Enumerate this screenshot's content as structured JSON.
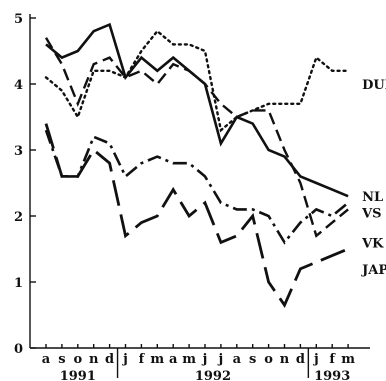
{
  "chart_data": {
    "type": "line",
    "title": "",
    "xlabel": "",
    "ylabel": "",
    "ylim": [
      0,
      5
    ],
    "yticks": [
      0,
      1,
      2,
      3,
      4,
      5
    ],
    "grid": false,
    "legend": "inline-right",
    "categories": [
      "a",
      "s",
      "o",
      "n",
      "d",
      "j",
      "f",
      "m",
      "a",
      "m",
      "j",
      "j",
      "a",
      "s",
      "o",
      "n",
      "d",
      "j",
      "f",
      "m"
    ],
    "year_labels": [
      {
        "label": "1991",
        "from": 0,
        "to": 4
      },
      {
        "label": "1992",
        "from": 5,
        "to": 16
      },
      {
        "label": "1993",
        "from": 17,
        "to": 19
      }
    ],
    "year_boundaries": [
      4.5,
      16.5
    ],
    "series": [
      {
        "name": "DUI",
        "style": "dotted",
        "values": [
          4.1,
          3.9,
          3.5,
          4.2,
          4.2,
          4.1,
          4.5,
          4.8,
          4.6,
          4.6,
          4.5,
          3.3,
          3.5,
          3.6,
          3.7,
          3.7,
          3.7,
          4.4,
          4.2,
          4.2
        ]
      },
      {
        "name": "NL",
        "style": "solid",
        "values": [
          4.6,
          4.4,
          4.5,
          4.8,
          4.9,
          4.1,
          4.4,
          4.2,
          4.4,
          4.2,
          4.0,
          3.1,
          3.5,
          3.4,
          3.0,
          2.9,
          2.6,
          2.5,
          2.4,
          2.3
        ]
      },
      {
        "name": "VS",
        "style": "dashed",
        "values": [
          4.7,
          4.3,
          3.7,
          4.3,
          4.4,
          4.1,
          4.2,
          4.0,
          4.3,
          4.2,
          4.0,
          3.7,
          3.5,
          3.6,
          3.6,
          3.0,
          2.5,
          1.7,
          1.9,
          2.1
        ]
      },
      {
        "name": "VK",
        "style": "dash-dot",
        "values": [
          3.3,
          2.6,
          2.6,
          3.2,
          3.1,
          2.6,
          2.8,
          2.9,
          2.8,
          2.8,
          2.6,
          2.2,
          2.1,
          2.1,
          2.0,
          1.6,
          1.9,
          2.1,
          2.0,
          2.2
        ]
      },
      {
        "name": "JAP",
        "style": "long-dash",
        "values": [
          3.4,
          2.6,
          2.6,
          3.0,
          2.8,
          1.7,
          1.9,
          2.0,
          2.4,
          2.0,
          2.2,
          1.6,
          1.7,
          2.0,
          1.0,
          0.65,
          1.2,
          1.3,
          1.4,
          1.5
        ]
      }
    ],
    "annotations": [
      {
        "text": "DUI",
        "series": "DUI",
        "y": 4.0
      },
      {
        "text": "NL",
        "series": "NL",
        "y": 2.3
      },
      {
        "text": "VS",
        "series": "VS",
        "y": 2.05
      },
      {
        "text": "VK",
        "series": "VK",
        "y": 1.6
      },
      {
        "text": "JAP",
        "series": "JAP",
        "y": 1.2
      }
    ]
  }
}
